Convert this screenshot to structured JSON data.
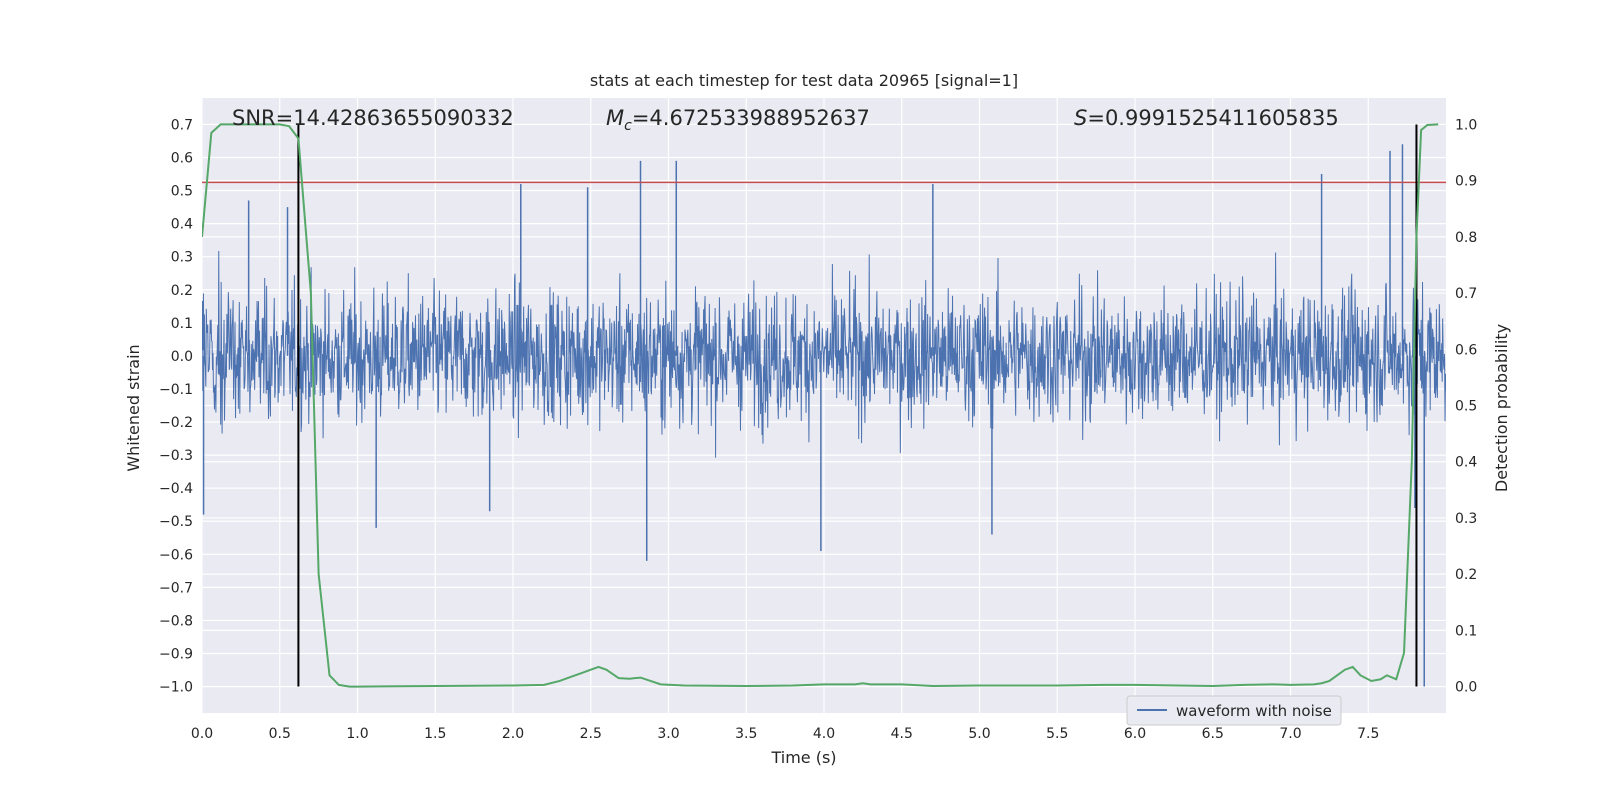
{
  "chart_data": {
    "type": "line",
    "title": "stats at each timestep for test data 20965 [signal=1]",
    "xlabel": "Time (s)",
    "ylabel": "Whitened strain",
    "y2label": "Detection probability",
    "xlim": [
      0.0,
      8.0
    ],
    "ylim": [
      -1.08,
      0.78
    ],
    "y2lim": [
      -0.047,
      1.047
    ],
    "xticks": [
      "0.0",
      "0.5",
      "1.0",
      "1.5",
      "2.0",
      "2.5",
      "3.0",
      "3.5",
      "4.0",
      "4.5",
      "5.0",
      "5.5",
      "6.0",
      "6.5",
      "7.0",
      "7.5"
    ],
    "yticks": [
      "0.7",
      "0.6",
      "0.5",
      "0.4",
      "0.3",
      "0.2",
      "0.1",
      "0.0",
      "-0.1",
      "-0.2",
      "-0.3",
      "-0.4",
      "-0.5",
      "-0.6",
      "-0.7",
      "-0.8",
      "-0.9",
      "-1.0"
    ],
    "y2ticks": [
      "0.0",
      "0.1",
      "0.2",
      "0.3",
      "0.4",
      "0.5",
      "0.6",
      "0.7",
      "0.8",
      "0.9",
      "1.0"
    ],
    "grid": true,
    "legend_position": "lower-right",
    "annotations": {
      "snr": "SNR=14.42863655090332",
      "mc_symbol": "M",
      "mc_sub": "c",
      "mc_value": "=4.672533988952637",
      "s_symbol": "S",
      "s_value": "=0.9991525411605835"
    },
    "series": [
      {
        "name": "waveform with noise",
        "axis": "left",
        "color": "#4c72b0",
        "representation": "dense noisy strain oscillating about 0, typical envelope ±0.3",
        "t_range": [
          0.0,
          8.0
        ],
        "envelope": 0.3,
        "spikes": [
          {
            "t": 0.01,
            "y": -0.48
          },
          {
            "t": 0.3,
            "y": 0.47
          },
          {
            "t": 0.55,
            "y": 0.45
          },
          {
            "t": 1.12,
            "y": -0.52
          },
          {
            "t": 1.85,
            "y": -0.47
          },
          {
            "t": 2.05,
            "y": 0.52
          },
          {
            "t": 2.48,
            "y": 0.51
          },
          {
            "t": 2.82,
            "y": 0.59
          },
          {
            "t": 2.86,
            "y": -0.62
          },
          {
            "t": 3.05,
            "y": 0.59
          },
          {
            "t": 3.98,
            "y": -0.59
          },
          {
            "t": 4.7,
            "y": 0.52
          },
          {
            "t": 5.08,
            "y": -0.54
          },
          {
            "t": 7.2,
            "y": 0.55
          },
          {
            "t": 7.64,
            "y": 0.62
          },
          {
            "t": 7.72,
            "y": 0.64
          },
          {
            "t": 7.8,
            "y": -0.46
          },
          {
            "t": 7.86,
            "y": -1.0
          }
        ]
      },
      {
        "name": "detection probability",
        "axis": "right",
        "color": "#55a868",
        "x": [
          0.0,
          0.06,
          0.12,
          0.2,
          0.3,
          0.4,
          0.5,
          0.56,
          0.62,
          0.7,
          0.75,
          0.82,
          0.88,
          0.95,
          1.0,
          1.5,
          2.0,
          2.2,
          2.3,
          2.4,
          2.45,
          2.5,
          2.55,
          2.6,
          2.68,
          2.75,
          2.82,
          2.95,
          3.1,
          3.5,
          3.8,
          4.0,
          4.1,
          4.2,
          4.25,
          4.3,
          4.5,
          4.7,
          5.0,
          5.5,
          5.8,
          6.0,
          6.5,
          6.7,
          6.9,
          7.0,
          7.15,
          7.2,
          7.25,
          7.3,
          7.35,
          7.4,
          7.45,
          7.52,
          7.58,
          7.62,
          7.68,
          7.73,
          7.78,
          7.81,
          7.84,
          7.88,
          7.95
        ],
        "y": [
          0.8,
          0.985,
          1.0,
          1.0,
          1.0,
          1.0,
          1.0,
          0.997,
          0.975,
          0.7,
          0.2,
          0.02,
          0.003,
          0.0,
          0.0,
          0.001,
          0.002,
          0.003,
          0.01,
          0.02,
          0.025,
          0.03,
          0.035,
          0.03,
          0.015,
          0.014,
          0.016,
          0.004,
          0.002,
          0.001,
          0.002,
          0.004,
          0.004,
          0.004,
          0.006,
          0.004,
          0.004,
          0.001,
          0.002,
          0.002,
          0.003,
          0.003,
          0.001,
          0.003,
          0.004,
          0.003,
          0.004,
          0.006,
          0.01,
          0.02,
          0.03,
          0.035,
          0.02,
          0.01,
          0.013,
          0.02,
          0.013,
          0.06,
          0.4,
          0.8,
          0.99,
          0.999,
          1.0
        ]
      }
    ],
    "threshold": {
      "axis": "left",
      "y": 0.525,
      "color": "#c44e52"
    },
    "vlines": [
      {
        "t": 0.62,
        "y_from": -1.0,
        "y_to": 0.7,
        "color": "#000000"
      },
      {
        "t": 7.81,
        "y_from": -1.0,
        "y_to": 0.7,
        "color": "#000000"
      }
    ]
  }
}
